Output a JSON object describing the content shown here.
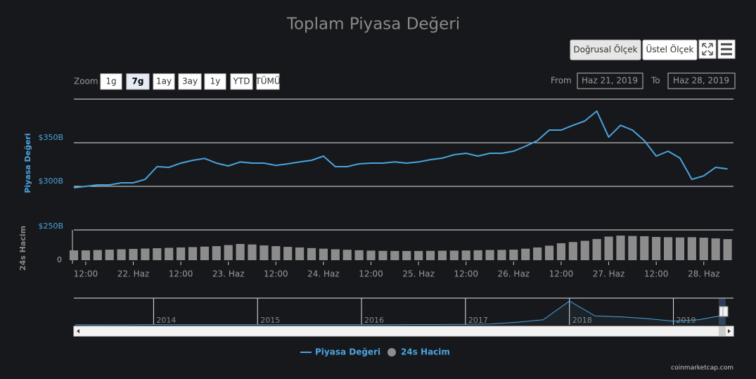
{
  "chart_data": {
    "type": "line",
    "title": "Toplam Piyasa Değeri",
    "y_axis_label": "Piyasa Değeri",
    "y2_axis_label": "24s Hacim",
    "x": [
      "2019-06-21T09:00",
      "2019-06-21T12:00",
      "2019-06-21T15:00",
      "2019-06-21T18:00",
      "2019-06-21T21:00",
      "2019-06-22T00:00",
      "2019-06-22T03:00",
      "2019-06-22T06:00",
      "2019-06-22T09:00",
      "2019-06-22T12:00",
      "2019-06-22T15:00",
      "2019-06-22T18:00",
      "2019-06-22T21:00",
      "2019-06-23T00:00",
      "2019-06-23T03:00",
      "2019-06-23T06:00",
      "2019-06-23T09:00",
      "2019-06-23T12:00",
      "2019-06-23T15:00",
      "2019-06-23T18:00",
      "2019-06-23T21:00",
      "2019-06-24T00:00",
      "2019-06-24T03:00",
      "2019-06-24T06:00",
      "2019-06-24T09:00",
      "2019-06-24T12:00",
      "2019-06-24T15:00",
      "2019-06-24T18:00",
      "2019-06-24T21:00",
      "2019-06-25T00:00",
      "2019-06-25T03:00",
      "2019-06-25T06:00",
      "2019-06-25T09:00",
      "2019-06-25T12:00",
      "2019-06-25T15:00",
      "2019-06-25T18:00",
      "2019-06-25T21:00",
      "2019-06-26T00:00",
      "2019-06-26T03:00",
      "2019-06-26T06:00",
      "2019-06-26T09:00",
      "2019-06-26T12:00",
      "2019-06-26T15:00",
      "2019-06-26T18:00",
      "2019-06-26T21:00",
      "2019-06-27T00:00",
      "2019-06-27T03:00",
      "2019-06-27T06:00",
      "2019-06-27T09:00",
      "2019-06-27T12:00",
      "2019-06-27T15:00",
      "2019-06-27T18:00",
      "2019-06-27T21:00",
      "2019-06-28T00:00",
      "2019-06-28T03:00",
      "2019-06-28T06:00"
    ],
    "series": [
      {
        "name": "Piyasa Değeri",
        "color": "#4aa3df",
        "values": [
          298.4,
          300,
          301.6,
          301.6,
          304,
          304,
          308,
          322.6,
          321.8,
          326.6,
          329.8,
          332,
          326.6,
          323.4,
          328,
          326.6,
          326.6,
          324,
          325.8,
          328,
          329.8,
          334.7,
          322.6,
          322.6,
          325.8,
          326.6,
          326.6,
          328,
          326.6,
          328,
          330.6,
          332.3,
          336.3,
          337.9,
          334.7,
          337.9,
          337.9,
          340.3,
          346,
          352.4,
          364.5,
          364.5,
          370,
          375,
          386.3,
          356.5,
          370,
          364.5,
          352.4,
          334.7,
          340.3,
          332.3,
          308,
          312,
          321.8,
          320
        ]
      },
      {
        "name": "24s Hacim",
        "color": "#8c8c8c",
        "axis": "y2",
        "values": [
          81,
          81,
          84,
          87,
          90,
          93,
          96,
          99,
          102,
          105,
          108,
          112,
          116,
          125,
          134,
          130,
          122,
          116,
          110,
          105,
          100,
          95,
          90,
          86,
          82,
          79,
          77,
          76,
          76,
          76,
          77,
          78,
          79,
          80,
          82,
          84,
          85,
          87,
          95,
          105,
          120,
          140,
          150,
          160,
          175,
          195,
          203,
          200,
          198,
          192,
          190,
          188,
          190,
          186,
          180,
          174
        ]
      }
    ],
    "xlim": [
      "2019-06-21T09:00",
      "2019-06-28T07:30"
    ],
    "xticks": [
      {
        "value": "2019-06-21T12:00",
        "label": "12:00"
      },
      {
        "value": "2019-06-22T00:00",
        "label": "22. Haz"
      },
      {
        "value": "2019-06-22T12:00",
        "label": "12:00"
      },
      {
        "value": "2019-06-23T00:00",
        "label": "23. Haz"
      },
      {
        "value": "2019-06-23T12:00",
        "label": "12:00"
      },
      {
        "value": "2019-06-24T00:00",
        "label": "24. Haz"
      },
      {
        "value": "2019-06-24T12:00",
        "label": "12:00"
      },
      {
        "value": "2019-06-25T00:00",
        "label": "25. Haz"
      },
      {
        "value": "2019-06-25T12:00",
        "label": "12:00"
      },
      {
        "value": "2019-06-26T00:00",
        "label": "26. Haz"
      },
      {
        "value": "2019-06-26T12:00",
        "label": "12:00"
      },
      {
        "value": "2019-06-27T00:00",
        "label": "27. Haz"
      },
      {
        "value": "2019-06-27T12:00",
        "label": "12:00"
      },
      {
        "value": "2019-06-28T00:00",
        "label": "28. Haz"
      }
    ],
    "ylim": [
      300,
      400
    ],
    "yticks": [
      {
        "value": 300,
        "label": "$300B"
      },
      {
        "value": 350,
        "label": "$350B"
      }
    ],
    "y2lim": [
      0,
      250
    ],
    "y2ticks": [
      0,
      {
        "value": 250,
        "label": "$250B"
      }
    ],
    "grid": true,
    "legend": "bottom",
    "navigator": {
      "x": [
        "2013-04",
        "2013-07",
        "2013-10",
        "2014-01",
        "2014-04",
        "2014-07",
        "2014-10",
        "2015-01",
        "2015-04",
        "2015-07",
        "2015-10",
        "2016-01",
        "2016-04",
        "2016-07",
        "2016-10",
        "2017-01",
        "2017-04",
        "2017-07",
        "2017-10",
        "2018-01",
        "2018-04",
        "2018-07",
        "2018-10",
        "2019-01",
        "2019-04",
        "2019-07"
      ],
      "values": [
        1.5,
        1,
        2,
        10,
        7,
        8,
        6,
        4,
        4,
        5,
        5,
        7,
        8,
        11,
        12,
        18,
        30,
        90,
        170,
        800,
        300,
        270,
        210,
        125,
        175,
        330
      ],
      "color": "#4aa3df",
      "xlim": [
        "2013-03-27",
        "2019-07-31"
      ],
      "ylim": [
        0,
        850
      ],
      "xticks": [
        2014,
        2015,
        2016,
        2017,
        2018,
        2019
      ]
    }
  },
  "range_selector": {
    "label": "Zoom",
    "buttons": [
      "1g",
      "7g",
      "1ay",
      "3ay",
      "1y",
      "YTD",
      "TÜMÜ"
    ],
    "selected": 1,
    "from_label": "From",
    "from": "Haz 21, 2019",
    "to_label": "To",
    "to": "Haz 28, 2019"
  },
  "scale_buttons": [
    "Doğrusal Ölçek",
    "Üstel Ölçek"
  ],
  "credit": "coinmarketcap.com"
}
